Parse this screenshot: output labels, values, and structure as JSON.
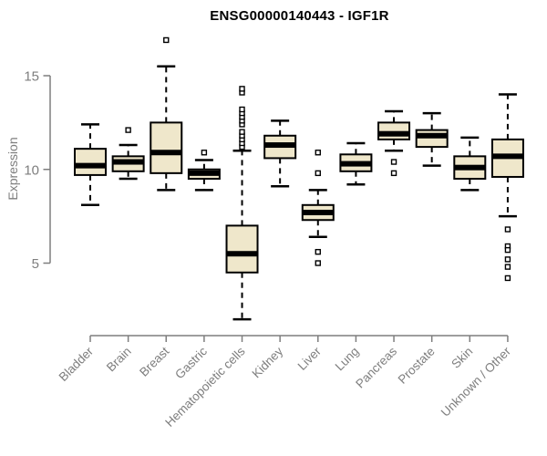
{
  "chart_data": {
    "type": "boxplot",
    "title": "ENSG00000140443 - IGF1R",
    "xlabel": "",
    "ylabel": "Expression",
    "yticks": [
      5,
      10,
      15
    ],
    "axis_range": [
      5,
      15
    ],
    "grid": false,
    "legend": "none",
    "categories": [
      "Bladder",
      "Brain",
      "Breast",
      "Gastric",
      "Hematopoietic cells",
      "Kidney",
      "Liver",
      "Lung",
      "Pancreas",
      "Prostate",
      "Skin",
      "Unknown / Other"
    ],
    "series": [
      {
        "category": "Bladder",
        "whisker_low": 8.1,
        "q1": 9.7,
        "median": 10.2,
        "q3": 11.1,
        "whisker_high": 12.4,
        "outliers": []
      },
      {
        "category": "Brain",
        "whisker_low": 9.5,
        "q1": 9.9,
        "median": 10.4,
        "q3": 10.7,
        "whisker_high": 11.3,
        "outliers": [
          12.1
        ]
      },
      {
        "category": "Breast",
        "whisker_low": 8.9,
        "q1": 9.8,
        "median": 10.9,
        "q3": 12.5,
        "whisker_high": 15.5,
        "outliers": [
          16.9
        ]
      },
      {
        "category": "Gastric",
        "whisker_low": 8.9,
        "q1": 9.5,
        "median": 9.8,
        "q3": 10.0,
        "whisker_high": 10.5,
        "outliers": [
          10.9
        ]
      },
      {
        "category": "Hematopoietic cells",
        "whisker_low": 2.0,
        "q1": 4.5,
        "median": 5.5,
        "q3": 7.0,
        "whisker_high": 11.0,
        "outliers": [
          11.2,
          11.4,
          11.6,
          11.8,
          12.0,
          12.4,
          12.6,
          12.8,
          13.0,
          13.2,
          14.1,
          14.3
        ]
      },
      {
        "category": "Kidney",
        "whisker_low": 9.1,
        "q1": 10.6,
        "median": 11.3,
        "q3": 11.8,
        "whisker_high": 12.6,
        "outliers": []
      },
      {
        "category": "Liver",
        "whisker_low": 6.4,
        "q1": 7.3,
        "median": 7.7,
        "q3": 8.1,
        "whisker_high": 8.9,
        "outliers": [
          10.9,
          9.8,
          5.6,
          5.0
        ]
      },
      {
        "category": "Lung",
        "whisker_low": 9.2,
        "q1": 9.9,
        "median": 10.3,
        "q3": 10.8,
        "whisker_high": 11.4,
        "outliers": []
      },
      {
        "category": "Pancreas",
        "whisker_low": 11.0,
        "q1": 11.6,
        "median": 11.9,
        "q3": 12.5,
        "whisker_high": 13.1,
        "outliers": [
          10.4,
          9.8
        ]
      },
      {
        "category": "Prostate",
        "whisker_low": 10.2,
        "q1": 11.2,
        "median": 11.8,
        "q3": 12.1,
        "whisker_high": 13.0,
        "outliers": []
      },
      {
        "category": "Skin",
        "whisker_low": 8.9,
        "q1": 9.5,
        "median": 10.1,
        "q3": 10.7,
        "whisker_high": 11.7,
        "outliers": []
      },
      {
        "category": "Unknown / Other",
        "whisker_low": 7.5,
        "q1": 9.6,
        "median": 10.7,
        "q3": 11.6,
        "whisker_high": 14.0,
        "outliers": [
          6.8,
          5.9,
          5.7,
          5.2,
          4.8,
          4.2
        ]
      }
    ],
    "colors": {
      "box_fill": "#EFE7CB",
      "box_stroke": "#000000",
      "median": "#000000",
      "axis": "#7E7E7E",
      "title": "#000000"
    }
  }
}
